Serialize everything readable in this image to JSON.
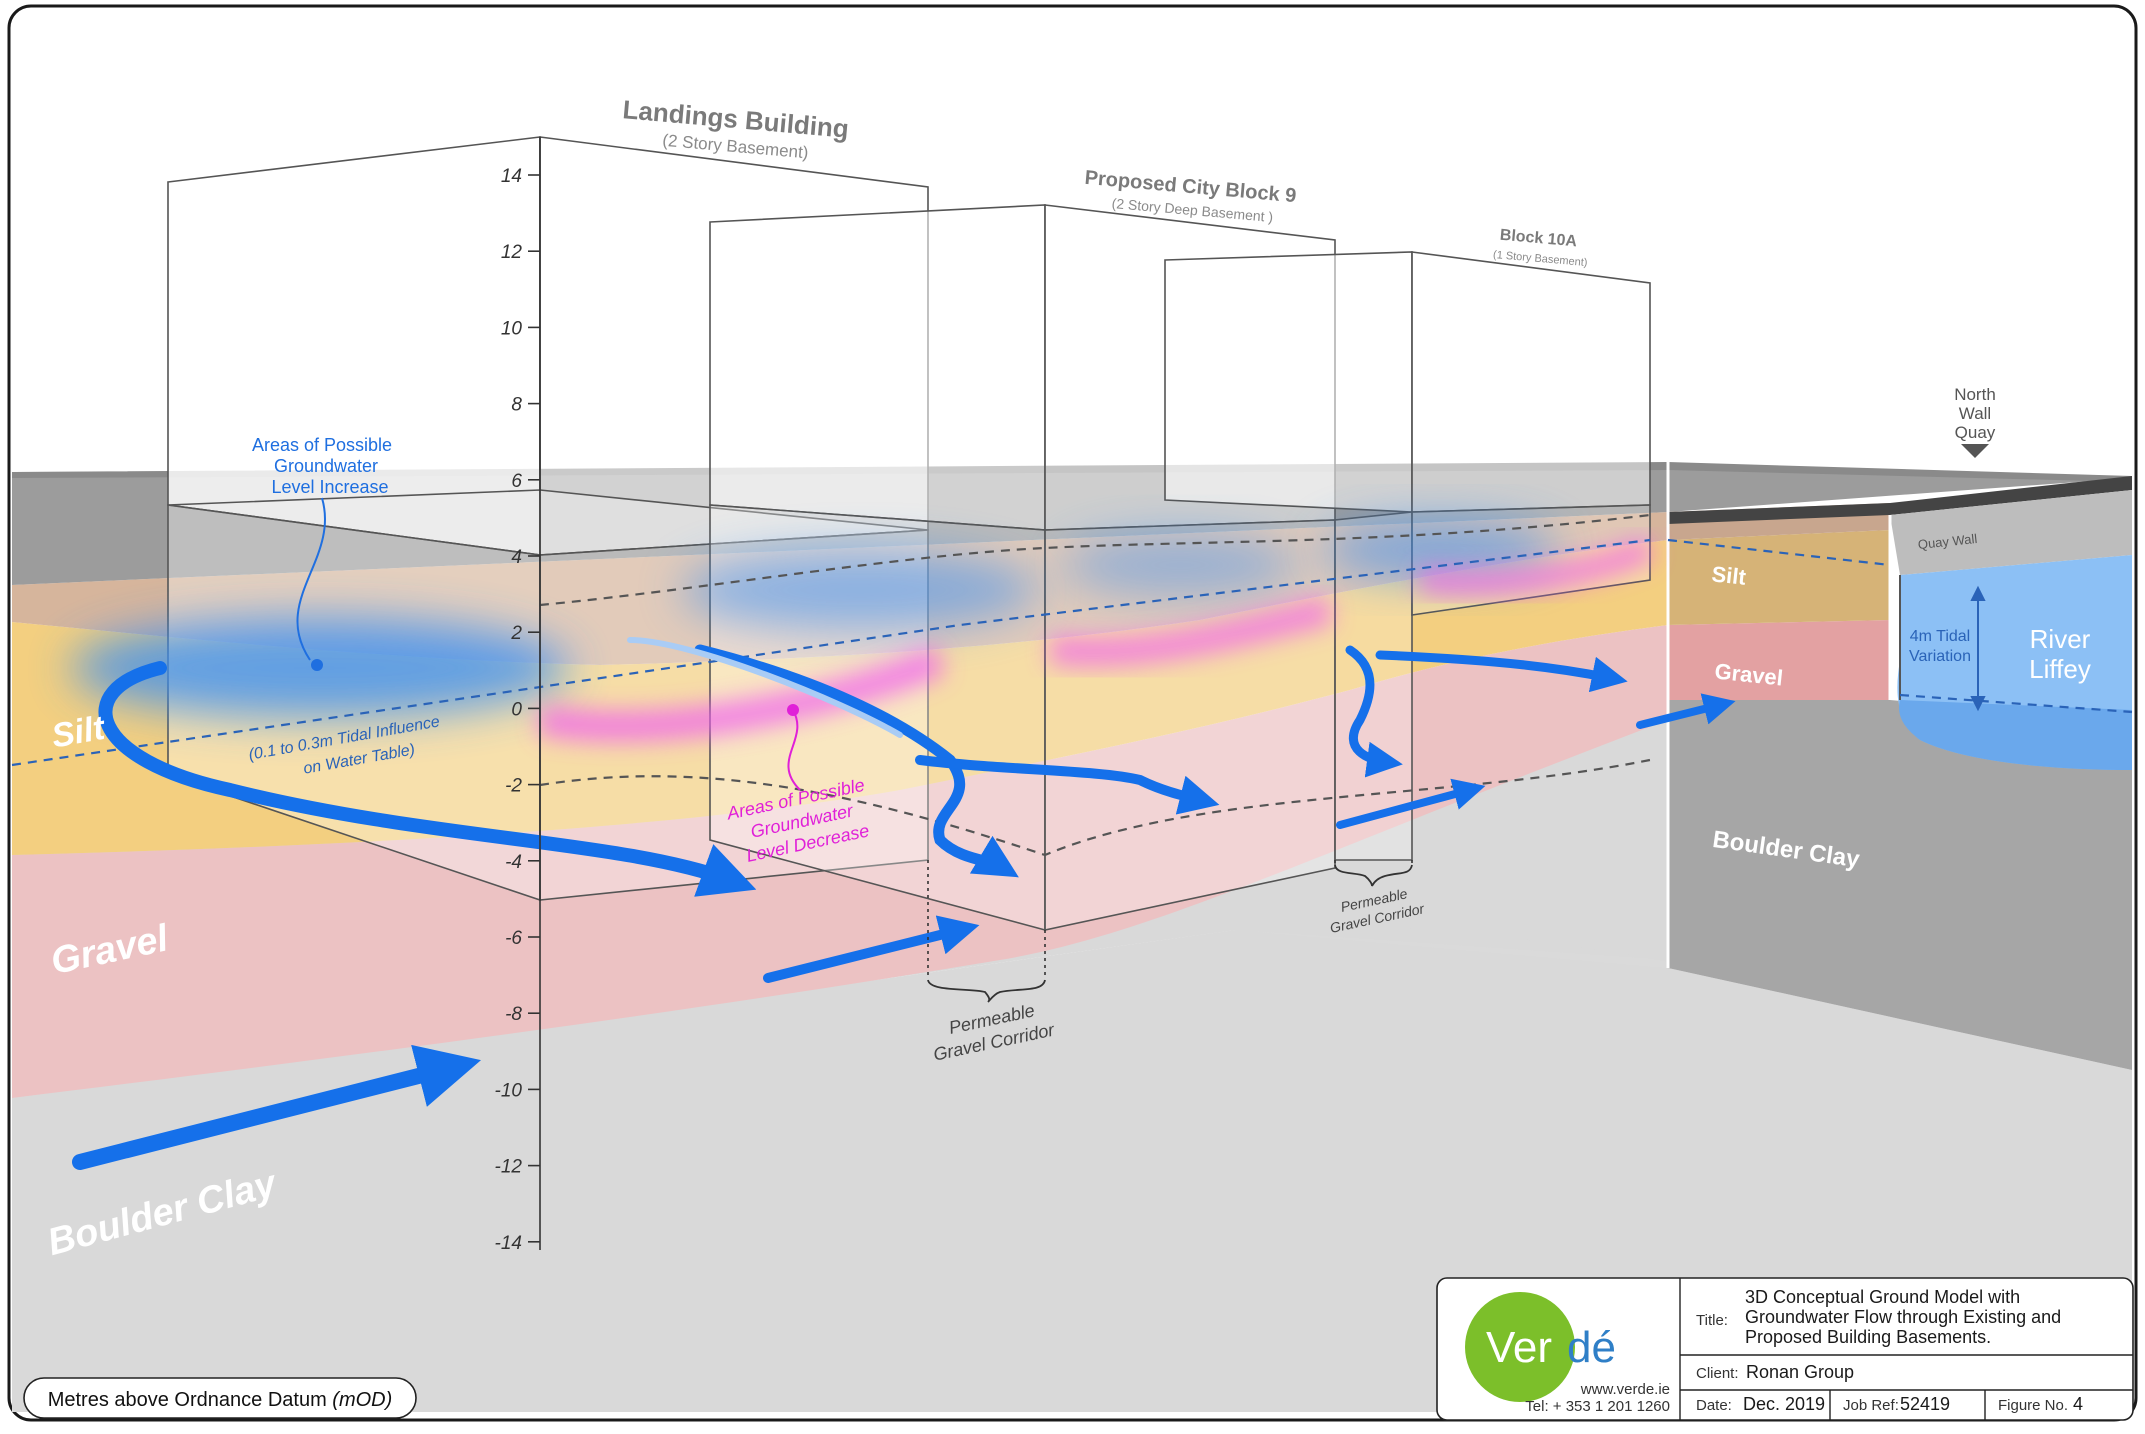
{
  "buildings": {
    "landings": {
      "name": "Landings Building",
      "sub": "(2 Story Basement)"
    },
    "city_block": {
      "name": "Proposed City Block 9",
      "sub": "(2 Story Deep Basement )"
    },
    "block10a": {
      "name": "Block 10A",
      "sub": "(1 Story Basement)"
    }
  },
  "axis": {
    "ticks": [
      "14",
      "12",
      "10",
      "8",
      "6",
      "4",
      "2",
      "0",
      "-2",
      "-4",
      "-6",
      "-8",
      "-10",
      "-12",
      "-14"
    ],
    "unit_label_plain": "Metres above Ordnance Datum",
    "unit_label_italic": "(mOD)"
  },
  "layers": {
    "silt": "Silt",
    "gravel": "Gravel",
    "boulder_clay": "Boulder Clay",
    "silt_right": "Silt",
    "gravel_right": "Gravel",
    "boulder_clay_right": "Boulder Clay"
  },
  "annotations": {
    "increase": [
      "Areas of Possible",
      "Groundwater",
      "Level Increase"
    ],
    "decrease": [
      "Areas of Possible",
      "Groundwater",
      "Level Decrease"
    ],
    "tidal_influence": [
      "(0.1 to 0.3m Tidal Influence",
      "on Water Table)"
    ],
    "corridor1": [
      "Permeable",
      "Gravel Corridor"
    ],
    "corridor2": [
      "Permeable",
      "Gravel Corridor"
    ],
    "quay": [
      "North",
      "Wall",
      "Quay"
    ],
    "quay_wall": "Quay Wall",
    "river": [
      "River",
      "Liffey"
    ],
    "tidal_variation": [
      "4m Tidal",
      "Variation"
    ]
  },
  "title_block": {
    "logo_text_1": "Ver",
    "logo_text_2": "dé",
    "website": "www.verde.ie",
    "tel": "Tel: + 353 1 201 1260",
    "title_label": "Title:",
    "title_lines": [
      "3D Conceptual Ground Model with",
      "Groundwater Flow through Existing and",
      "Proposed Building Basements."
    ],
    "client_label": "Client:",
    "client": "Ronan Group",
    "date_label": "Date:",
    "date": "Dec. 2019",
    "job_label": "Job Ref:",
    "job": "52419",
    "figure_label": "Figure No.",
    "figure": "4"
  },
  "colors": {
    "silt": "#f3cf80",
    "gravel": "#ecc2c3",
    "boulder_clay": "#d8d8d8",
    "made_ground": "#d6b59c",
    "surface": "#9a9a9a",
    "groundwater_arrow": "#1570ea",
    "increase_zone": "#3d8ff0",
    "decrease_zone": "#f05ef0",
    "river": "#8cc0f5",
    "logo_green": "#7cbf2a"
  }
}
